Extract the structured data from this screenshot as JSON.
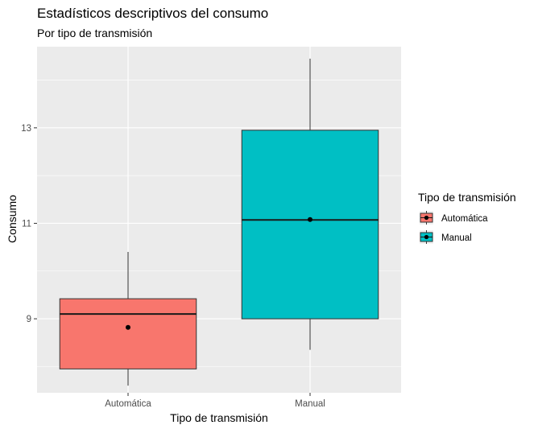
{
  "chart_data": {
    "type": "boxplot",
    "title": "Estadísticos descriptivos del consumo",
    "subtitle": "Por tipo de transmisión",
    "xlabel": "Tipo de transmisión",
    "ylabel": "Consumo",
    "ylim": [
      7.45,
      14.7
    ],
    "yticks": [
      9,
      11,
      13
    ],
    "grid": true,
    "legend": {
      "title": "Tipo de transmisión",
      "position": "right"
    },
    "categories": [
      "Automática",
      "Manual"
    ],
    "series": [
      {
        "name": "Automática",
        "color": "#F8766D",
        "whisker_low": 7.6,
        "q1": 7.95,
        "median": 9.1,
        "q3": 9.42,
        "whisker_high": 10.4,
        "mean": 8.82
      },
      {
        "name": "Manual",
        "color": "#00BFC4",
        "whisker_low": 8.35,
        "q1": 9.0,
        "median": 11.07,
        "q3": 12.95,
        "whisker_high": 14.45,
        "mean": 11.08
      }
    ]
  }
}
